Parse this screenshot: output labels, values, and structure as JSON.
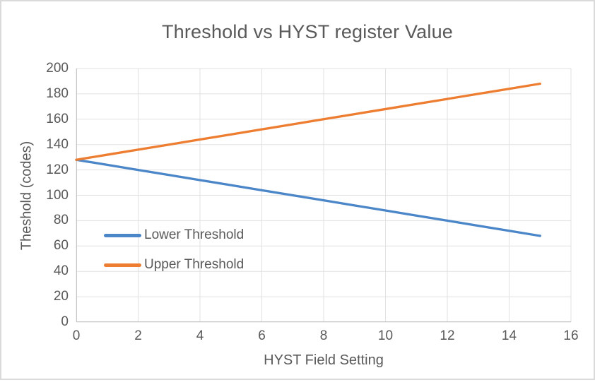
{
  "window": {
    "frame_border_color": "#dadada",
    "background_color": "#ffffff"
  },
  "chart_data": {
    "type": "line",
    "title": "Threshold vs HYST register Value",
    "xlabel": "HYST Field Setting",
    "ylabel": "Theshold (codes)",
    "xlim": [
      0,
      16
    ],
    "ylim": [
      0,
      200
    ],
    "x_ticks": [
      0,
      2,
      4,
      6,
      8,
      10,
      12,
      14,
      16
    ],
    "y_ticks": [
      0,
      20,
      40,
      60,
      80,
      100,
      120,
      140,
      160,
      180,
      200
    ],
    "grid": true,
    "legend_position": "inside-left",
    "x": [
      0,
      1,
      2,
      3,
      4,
      5,
      6,
      7,
      8,
      9,
      10,
      11,
      12,
      13,
      14,
      15
    ],
    "series": [
      {
        "name": "Lower Threshold",
        "color": "#4a86c8",
        "values": [
          128,
          124,
          120,
          116,
          112,
          108,
          104,
          100,
          96,
          92,
          88,
          84,
          80,
          76,
          72,
          68
        ]
      },
      {
        "name": "Upper Threshold",
        "color": "#ed7d31",
        "values": [
          128,
          132,
          136,
          140,
          144,
          148,
          152,
          156,
          160,
          164,
          168,
          172,
          176,
          180,
          184,
          188
        ]
      }
    ],
    "text_color": "#595959",
    "gridline_color": "#e1e1e1",
    "axis_line_color": "#c6c6c6"
  }
}
